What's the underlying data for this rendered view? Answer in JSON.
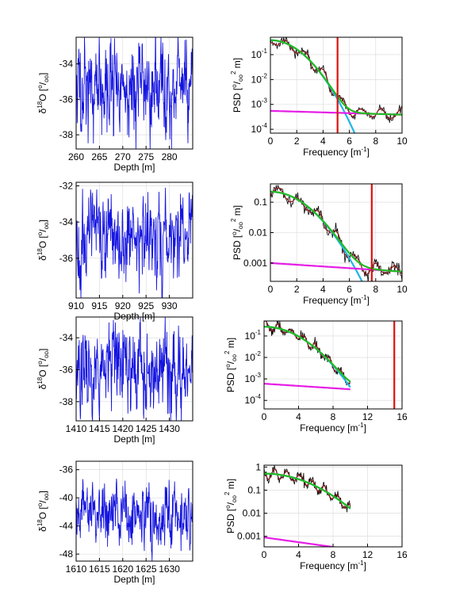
{
  "figure": {
    "rows": [
      {
        "depth": {
          "xlabel": "Depth [m]",
          "ylabel_main": "δ",
          "ylabel_sup": "18",
          "ylabel_rest": "O [",
          "ylabel_unit_sup": "o",
          "ylabel_unit_sub": "oo",
          "ylabel_close": "]",
          "xlim": [
            260,
            285
          ],
          "ylim": [
            -38.8,
            -32.5
          ],
          "xticks": [
            260,
            265,
            270,
            275,
            280
          ],
          "yticks": [
            -38,
            -36,
            -34
          ],
          "seed": 11,
          "mean": -35.3,
          "amp": 1.5
        },
        "psd": {
          "xlabel": "Frequency [m",
          "xlabel_sup": "-1",
          "xlabel_close": "]",
          "ylabel": "PSD [",
          "ylabel_unit_sup": "o",
          "ylabel_unit_sub": "oo",
          "ylabel_exp": "2",
          "ylabel_close": " m]",
          "log_y": true,
          "xlim": [
            0,
            10
          ],
          "ylim": [
            7e-05,
            0.5
          ],
          "xticks": [
            0,
            2,
            4,
            6,
            8,
            10
          ],
          "yticks": [
            {
              "v": 0.1,
              "b": "10",
              "e": "-1"
            },
            {
              "v": 0.01,
              "b": "10",
              "e": "-2"
            },
            {
              "v": 0.001,
              "b": "10",
              "e": "-3"
            },
            {
              "v": 0.0001,
              "b": "10",
              "e": "-4"
            }
          ],
          "f_max": 10,
          "A": 0.38,
          "k": 0.21,
          "noise": 0.00055,
          "noise_decay": 0.035,
          "cutoff": 5.1,
          "seed": 3
        }
      },
      {
        "depth": {
          "xlabel": "Depth [m]",
          "ylabel_main": "δ",
          "ylabel_sup": "18",
          "ylabel_rest": "O [",
          "ylabel_unit_sup": "o",
          "ylabel_unit_sub": "oo",
          "ylabel_close": "]",
          "xlim": [
            910,
            935
          ],
          "ylim": [
            -38.2,
            -31.8
          ],
          "xticks": [
            910,
            915,
            920,
            925,
            930
          ],
          "yticks": [
            -36,
            -34,
            -32
          ],
          "seed": 23,
          "mean": -35.0,
          "amp": 1.3
        },
        "psd": {
          "xlabel": "Frequency [m",
          "xlabel_sup": "-1",
          "xlabel_close": "]",
          "ylabel": "PSD [",
          "ylabel_unit_sup": "o",
          "ylabel_unit_sub": "oo",
          "ylabel_exp": "2",
          "ylabel_close": " m]",
          "log_y": true,
          "xlim": [
            0,
            10
          ],
          "ylim": [
            0.00025,
            0.4
          ],
          "xticks": [
            0,
            2,
            4,
            6,
            8,
            10
          ],
          "yticks": [
            {
              "v": 0.1,
              "b": "0.1",
              "e": ""
            },
            {
              "v": 0.01,
              "b": "0.01",
              "e": ""
            },
            {
              "v": 0.001,
              "b": "0.001",
              "e": ""
            }
          ],
          "f_max": 10,
          "A": 0.22,
          "k": 0.14,
          "noise": 0.001,
          "noise_decay": 0.065,
          "cutoff": 7.7,
          "seed": 5
        }
      },
      {
        "depth": {
          "xlabel": "Depth [m]",
          "ylabel_main": "δ",
          "ylabel_sup": "18",
          "ylabel_rest": "O [",
          "ylabel_unit_sup": "o",
          "ylabel_unit_sub": "oo",
          "ylabel_close": "]",
          "xlim": [
            1410,
            1435
          ],
          "ylim": [
            -39.2,
            -32.7
          ],
          "xticks": [
            1410,
            1415,
            1420,
            1425,
            1430
          ],
          "yticks": [
            -38,
            -36,
            -34
          ],
          "seed": 37,
          "mean": -36.0,
          "amp": 1.5
        },
        "psd": {
          "xlabel": "Frequency [m",
          "xlabel_sup": "-1",
          "xlabel_close": "]",
          "ylabel": "PSD [",
          "ylabel_unit_sup": "o",
          "ylabel_unit_sub": "oo",
          "ylabel_exp": "2",
          "ylabel_close": " m]",
          "log_y": true,
          "xlim": [
            0,
            16
          ],
          "ylim": [
            4e-05,
            0.5
          ],
          "xticks": [
            0,
            4,
            8,
            12,
            16
          ],
          "yticks": [
            {
              "v": 0.1,
              "b": "10",
              "e": "-1"
            },
            {
              "v": 0.01,
              "b": "10",
              "e": "-2"
            },
            {
              "v": 0.001,
              "b": "10",
              "e": "-3"
            },
            {
              "v": 0.0001,
              "b": "10",
              "e": "-4"
            }
          ],
          "f_max": 10,
          "A": 0.27,
          "k": 0.065,
          "noise": 0.0006,
          "noise_decay": 0.06,
          "cutoff": 15.1,
          "seed": 7
        }
      },
      {
        "depth": {
          "xlabel": "Depth [m]",
          "ylabel_main": "δ",
          "ylabel_sup": "18",
          "ylabel_rest": "O [",
          "ylabel_unit_sup": "o",
          "ylabel_unit_sub": "oo",
          "ylabel_close": "]",
          "xlim": [
            1610,
            1635
          ],
          "ylim": [
            -49,
            -34.8
          ],
          "xticks": [
            1610,
            1615,
            1620,
            1625,
            1630
          ],
          "yticks": [
            -48,
            -44,
            -40,
            -36
          ],
          "seed": 51,
          "mean": -42.2,
          "amp": 2.5
        },
        "psd": {
          "xlabel": "Frequency [m",
          "xlabel_sup": "-1",
          "xlabel_close": "]",
          "ylabel": "PSD [",
          "ylabel_unit_sup": "o",
          "ylabel_unit_sub": "oo",
          "ylabel_exp": "2",
          "ylabel_close": " m]",
          "log_y": true,
          "xlim": [
            0,
            16
          ],
          "ylim": [
            0.00035,
            1.2
          ],
          "xticks": [
            0,
            4,
            8,
            12,
            16
          ],
          "yticks": [
            {
              "v": 1,
              "b": "1",
              "e": ""
            },
            {
              "v": 0.1,
              "b": "0.1",
              "e": ""
            },
            {
              "v": 0.01,
              "b": "0.01",
              "e": ""
            },
            {
              "v": 0.001,
              "b": "0.001",
              "e": ""
            }
          ],
          "f_max": 10,
          "A": 0.52,
          "k": 0.035,
          "noise": 0.0009,
          "noise_decay": 0.12,
          "cutoff": null,
          "seed": 9
        }
      }
    ]
  },
  "colors": {
    "depth_series": "#1515e0",
    "psd_raw": "#000000",
    "psd_smooth": "#8b1a1a",
    "fit_total": "#22bb22",
    "fit_signal": "#22b4e6",
    "fit_noise": "#e51ee5",
    "cutoff_line": "#dd1111",
    "grid": "#d8d8d8"
  }
}
